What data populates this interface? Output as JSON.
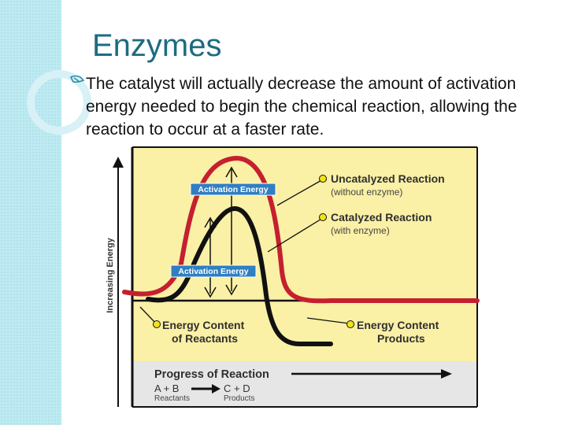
{
  "slide": {
    "title": "Enzymes",
    "bullet": "The catalyst will actually decrease the amount of activation energy needed to begin the chemical reaction, allowing the reaction to occur at a faster rate."
  },
  "diagram": {
    "y_axis_label": "Increasing Energy",
    "activation_energy_label_upper": "Activation Energy",
    "activation_energy_label_lower": "Activation Energy",
    "uncatalyzed_title": "Uncatalyzed Reaction",
    "uncatalyzed_sub": "(without enzyme)",
    "catalyzed_title": "Catalyzed Reaction",
    "catalyzed_sub": "(with enzyme)",
    "reactants_line1": "Energy Content",
    "reactants_line2": "of Reactants",
    "products_line1": "Energy Content",
    "products_line2": "Products",
    "progress_label": "Progress of Reaction",
    "reactants_formula": "A + B",
    "reactants_caption": "Reactants",
    "products_formula": "C + D",
    "products_caption": "Products",
    "colors": {
      "panel": "#faf0a6",
      "uncatalyzed_curve": "#c4202f",
      "catalyzed_curve": "#111111",
      "label_box": "#2f7fc1",
      "marker": "#f2e21a"
    }
  }
}
